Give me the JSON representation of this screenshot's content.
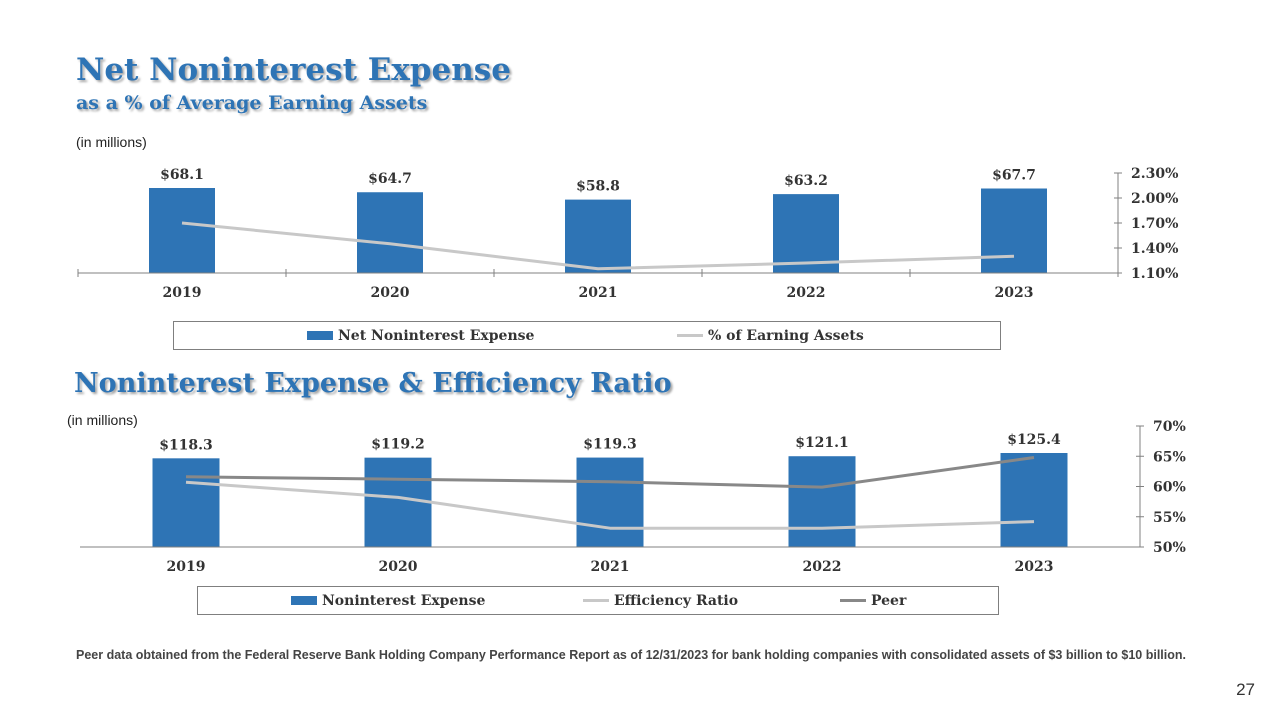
{
  "slide": {
    "title1": "Net Noninterest Expense",
    "subtitle1": "as a % of Average Earning Assets",
    "units1": "(in millions)",
    "title2": "Noninterest Expense & Efficiency Ratio",
    "units2": "(in millions)",
    "footnote": "Peer data obtained from the Federal Reserve Bank Holding Company Performance Report as of 12/31/2023 for bank holding companies with consolidated assets of $3 billion to $10 billion.",
    "page_number": "27"
  },
  "colors": {
    "title": "#2e74b5",
    "bar": "#2e74b5",
    "light_line": "#c8c8c8",
    "dark_line": "#888888",
    "axis": "#808080"
  },
  "chart_data": [
    {
      "type": "bar",
      "categories": [
        "2019",
        "2020",
        "2021",
        "2022",
        "2023"
      ],
      "series": [
        {
          "name": "Net Noninterest Expense",
          "type": "bar",
          "values": [
            68.1,
            64.7,
            58.8,
            63.2,
            67.7
          ],
          "labels": [
            "$68.1",
            "$64.7",
            "$58.8",
            "$63.2",
            "$67.7"
          ],
          "color": "#2e74b5"
        },
        {
          "name": "% of Earning Assets",
          "type": "line",
          "axis": "right",
          "values": [
            1.7,
            1.45,
            1.15,
            1.22,
            1.3
          ],
          "color": "#c8c8c8"
        }
      ],
      "y2_ticks": [
        "2.30%",
        "2.00%",
        "1.70%",
        "1.40%",
        "1.10%"
      ],
      "y2lim": [
        1.1,
        2.3
      ],
      "bar_max": 68.1,
      "legend_position": "bottom"
    },
    {
      "type": "bar",
      "categories": [
        "2019",
        "2020",
        "2021",
        "2022",
        "2023"
      ],
      "series": [
        {
          "name": "Noninterest Expense",
          "type": "bar",
          "values": [
            118.3,
            119.2,
            119.3,
            121.1,
            125.4
          ],
          "labels": [
            "$118.3",
            "$119.2",
            "$119.3",
            "$121.1",
            "$125.4"
          ],
          "color": "#2e74b5"
        },
        {
          "name": "Efficiency Ratio",
          "type": "line",
          "axis": "right",
          "values": [
            60.7,
            58.2,
            53.1,
            53.1,
            54.2
          ],
          "color": "#c8c8c8"
        },
        {
          "name": "Peer",
          "type": "line",
          "axis": "right",
          "values": [
            61.6,
            61.2,
            60.8,
            59.9,
            64.8
          ],
          "color": "#888888"
        }
      ],
      "y2_ticks": [
        "70%",
        "65%",
        "60%",
        "55%",
        "50%"
      ],
      "y2lim": [
        50,
        70
      ],
      "bar_max": 125.4,
      "legend_position": "bottom"
    }
  ]
}
